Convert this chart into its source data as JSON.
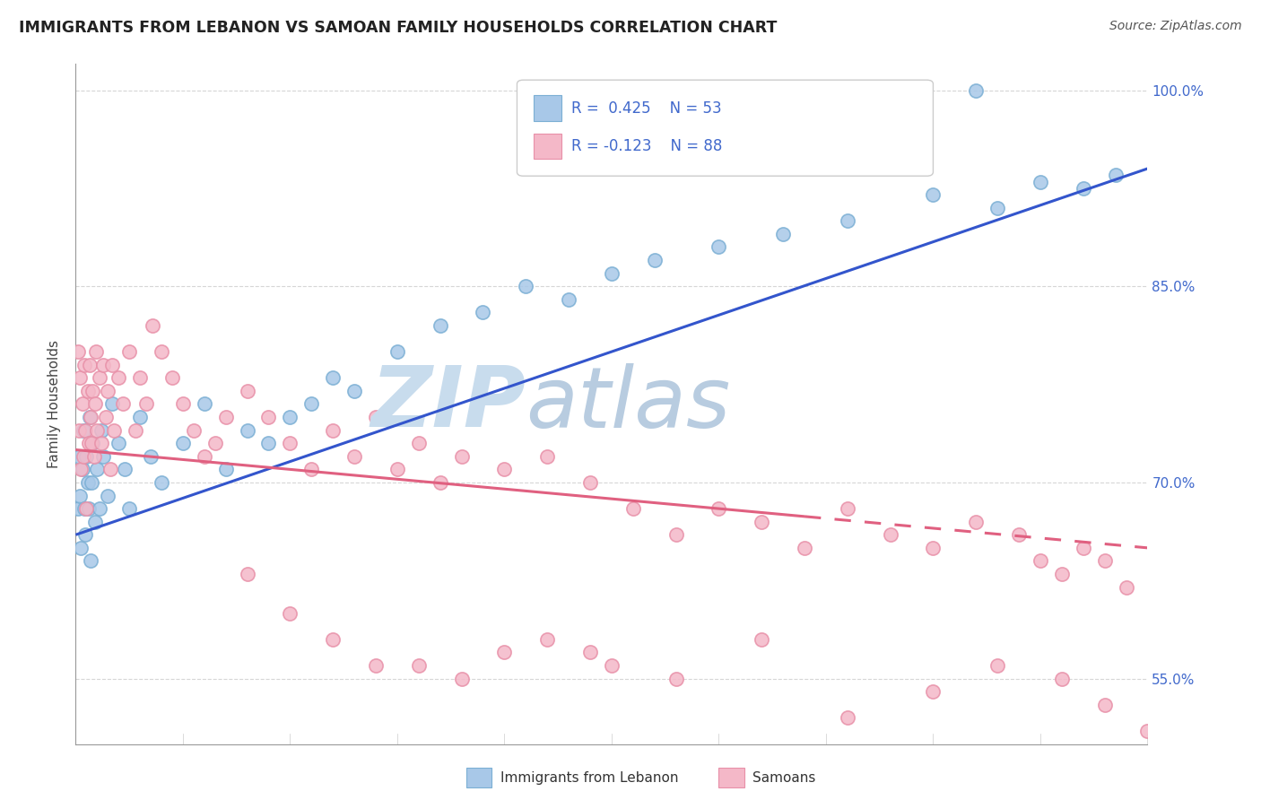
{
  "title": "IMMIGRANTS FROM LEBANON VS SAMOAN FAMILY HOUSEHOLDS CORRELATION CHART",
  "source": "Source: ZipAtlas.com",
  "ylabel": "Family Households",
  "xlim": [
    0.0,
    50.0
  ],
  "ylim": [
    50.0,
    102.0
  ],
  "ytick_vals": [
    55.0,
    70.0,
    85.0,
    100.0
  ],
  "ytick_labels": [
    "55.0%",
    "70.0%",
    "85.0%",
    "100.0%"
  ],
  "blue_color": "#a8c8e8",
  "blue_edge_color": "#7bafd4",
  "pink_color": "#f4b8c8",
  "pink_edge_color": "#e890a8",
  "blue_line_color": "#3355cc",
  "pink_line_color": "#e06080",
  "axis_label_color": "#4169cc",
  "title_color": "#222222",
  "source_color": "#555555",
  "watermark_zip_color": "#c8dced",
  "watermark_atlas_color": "#b8cce0",
  "legend_box_color": "#eeeeee",
  "blue_x": [
    0.1,
    0.15,
    0.2,
    0.25,
    0.3,
    0.35,
    0.4,
    0.45,
    0.5,
    0.55,
    0.6,
    0.65,
    0.7,
    0.75,
    0.8,
    0.9,
    1.0,
    1.1,
    1.2,
    1.3,
    1.5,
    1.7,
    2.0,
    2.3,
    2.5,
    3.0,
    3.5,
    4.0,
    5.0,
    6.0,
    7.0,
    8.0,
    9.0,
    10.0,
    11.0,
    12.0,
    13.0,
    15.0,
    17.0,
    19.0,
    21.0,
    23.0,
    25.0,
    27.0,
    30.0,
    33.0,
    36.0,
    40.0,
    43.0,
    45.0,
    47.0,
    48.5,
    42.0
  ],
  "blue_y": [
    68.0,
    72.0,
    69.0,
    65.0,
    71.0,
    74.0,
    68.0,
    66.0,
    72.0,
    70.0,
    68.0,
    75.0,
    64.0,
    70.0,
    73.0,
    67.0,
    71.0,
    68.0,
    74.0,
    72.0,
    69.0,
    76.0,
    73.0,
    71.0,
    68.0,
    75.0,
    72.0,
    70.0,
    73.0,
    76.0,
    71.0,
    74.0,
    73.0,
    75.0,
    76.0,
    78.0,
    77.0,
    80.0,
    82.0,
    83.0,
    85.0,
    84.0,
    86.0,
    87.0,
    88.0,
    89.0,
    90.0,
    92.0,
    91.0,
    93.0,
    92.5,
    93.5,
    100.0
  ],
  "pink_x": [
    0.1,
    0.15,
    0.2,
    0.25,
    0.3,
    0.35,
    0.4,
    0.45,
    0.5,
    0.55,
    0.6,
    0.65,
    0.7,
    0.75,
    0.8,
    0.85,
    0.9,
    0.95,
    1.0,
    1.1,
    1.2,
    1.3,
    1.4,
    1.5,
    1.6,
    1.7,
    1.8,
    2.0,
    2.2,
    2.5,
    2.8,
    3.0,
    3.3,
    3.6,
    4.0,
    4.5,
    5.0,
    5.5,
    6.0,
    6.5,
    7.0,
    8.0,
    9.0,
    10.0,
    11.0,
    12.0,
    13.0,
    14.0,
    15.0,
    16.0,
    17.0,
    18.0,
    20.0,
    22.0,
    24.0,
    26.0,
    28.0,
    30.0,
    32.0,
    34.0,
    36.0,
    38.0,
    40.0,
    42.0,
    44.0,
    45.0,
    46.0,
    47.0,
    48.0,
    49.0,
    14.0,
    24.0,
    28.0,
    32.0,
    36.0,
    40.0,
    43.0,
    46.0,
    48.0,
    50.0,
    8.0,
    10.0,
    12.0,
    16.0,
    18.0,
    20.0,
    22.0,
    25.0
  ],
  "pink_y": [
    80.0,
    74.0,
    78.0,
    71.0,
    76.0,
    72.0,
    79.0,
    74.0,
    68.0,
    77.0,
    73.0,
    79.0,
    75.0,
    73.0,
    77.0,
    72.0,
    76.0,
    80.0,
    74.0,
    78.0,
    73.0,
    79.0,
    75.0,
    77.0,
    71.0,
    79.0,
    74.0,
    78.0,
    76.0,
    80.0,
    74.0,
    78.0,
    76.0,
    82.0,
    80.0,
    78.0,
    76.0,
    74.0,
    72.0,
    73.0,
    75.0,
    77.0,
    75.0,
    73.0,
    71.0,
    74.0,
    72.0,
    75.0,
    71.0,
    73.0,
    70.0,
    72.0,
    71.0,
    72.0,
    70.0,
    68.0,
    66.0,
    68.0,
    67.0,
    65.0,
    68.0,
    66.0,
    65.0,
    67.0,
    66.0,
    64.0,
    63.0,
    65.0,
    64.0,
    62.0,
    56.0,
    57.0,
    55.0,
    58.0,
    52.0,
    54.0,
    56.0,
    55.0,
    53.0,
    51.0,
    63.0,
    60.0,
    58.0,
    56.0,
    55.0,
    57.0,
    58.0,
    56.0
  ],
  "blue_line_x0": 0.0,
  "blue_line_y0": 66.0,
  "blue_line_x1": 50.0,
  "blue_line_y1": 94.0,
  "pink_line_x0": 0.0,
  "pink_line_y0": 72.5,
  "pink_line_x1": 50.0,
  "pink_line_y1": 65.0,
  "pink_solid_end": 34.0,
  "pink_dashed_start": 34.0
}
